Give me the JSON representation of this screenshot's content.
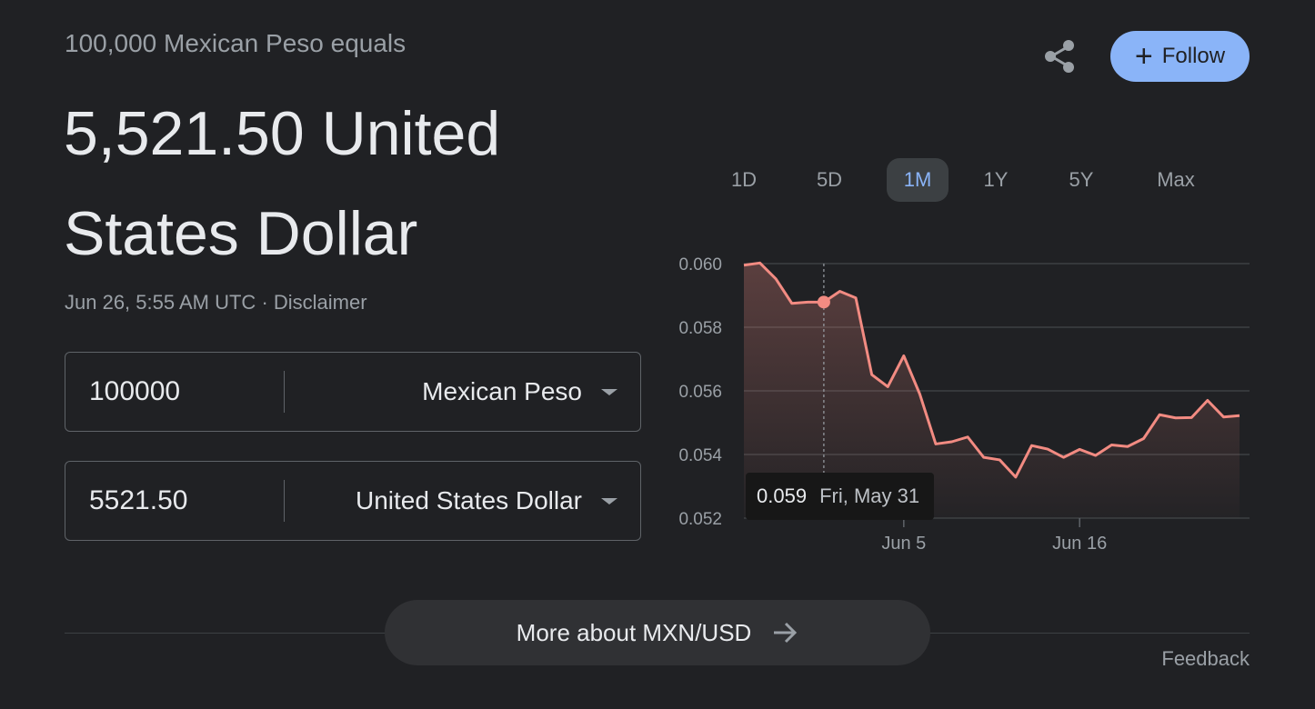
{
  "header": {
    "subtitle": "100,000 Mexican Peso equals",
    "result": "5,521.50 United States Dollar",
    "timestamp": "Jun 26, 5:55 AM UTC",
    "separator": " · ",
    "disclaimer": "Disclaimer"
  },
  "actions": {
    "share_icon": "share-icon",
    "follow_label": "Follow",
    "follow_icon": "+"
  },
  "converter": {
    "from": {
      "amount": "100000",
      "currency": "Mexican Peso"
    },
    "to": {
      "amount": "5521.50",
      "currency": "United States Dollar"
    }
  },
  "tabs": [
    {
      "label": "1D",
      "active": false
    },
    {
      "label": "5D",
      "active": false
    },
    {
      "label": "1M",
      "active": true
    },
    {
      "label": "1Y",
      "active": false
    },
    {
      "label": "5Y",
      "active": false
    },
    {
      "label": "Max",
      "active": false
    }
  ],
  "tooltip": {
    "value": "0.059",
    "date": "Fri, May 31"
  },
  "colors": {
    "line": "#f28b82",
    "accent": "#8ab4f8",
    "grid": "#3c4043"
  },
  "chart_data": {
    "type": "area",
    "y_ticks": [
      "0.060",
      "0.058",
      "0.056",
      "0.054",
      "0.052"
    ],
    "ylim": [
      0.052,
      0.06
    ],
    "x_ticks": [
      {
        "label": "Jun 5",
        "index": 10
      },
      {
        "label": "Jun 16",
        "index": 21
      }
    ],
    "values": [
      0.05995,
      0.06002,
      0.05952,
      0.05875,
      0.05879,
      0.05879,
      0.05913,
      0.05892,
      0.05651,
      0.05613,
      0.0571,
      0.0559,
      0.05433,
      0.0544,
      0.05455,
      0.05391,
      0.05383,
      0.05329,
      0.05428,
      0.05417,
      0.05391,
      0.05416,
      0.05397,
      0.0543,
      0.05425,
      0.0545,
      0.05525,
      0.05515,
      0.05516,
      0.0557,
      0.05518,
      0.05522
    ],
    "highlight_index": 5
  },
  "footer": {
    "more_label": "More about MXN/USD",
    "feedback": "Feedback"
  }
}
